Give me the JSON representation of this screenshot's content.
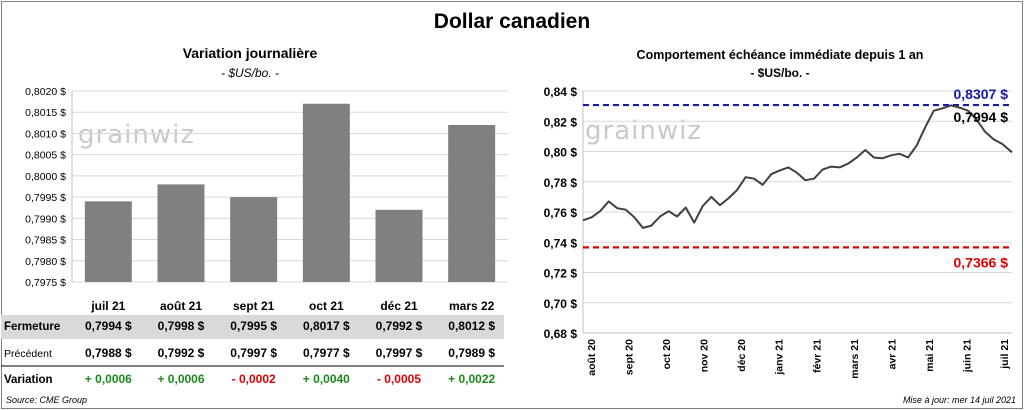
{
  "page": {
    "title": "Dollar canadien",
    "source": "Source: CME Group",
    "updated": "Mise à jour: mer 14 juil 2021",
    "watermark": "grainwiz"
  },
  "colors": {
    "bar": "#808080",
    "line": "#404040",
    "max_line": "#1a1aa6",
    "min_line": "#e00000",
    "positive": "#1a8a1a",
    "negative": "#e00000",
    "row_shade": "#d9d9d9"
  },
  "left_chart": {
    "title": "Variation  journalière",
    "unit": "- $US/bo. -"
  },
  "right_chart": {
    "title": "Comportement échéance immédiate depuis 1 an",
    "unit": "- $US/bo. -",
    "max_label": "0,8307 $",
    "last_label": "0,7994 $",
    "min_label": "0,7366 $"
  },
  "table": {
    "rows": [
      {
        "label": "Fermeture",
        "cells": [
          "0,7994  $",
          "0,7998  $",
          "0,7995  $",
          "0,8017  $",
          "0,7992  $",
          "0,8012  $"
        ]
      },
      {
        "label": "Précédent",
        "cells": [
          "0,7988  $",
          "0,7992  $",
          "0,7997  $",
          "0,7977  $",
          "0,7997  $",
          "0,7989  $"
        ]
      },
      {
        "label": "Variation",
        "cells": [
          "+ 0,0006",
          "+ 0,0006",
          "- 0,0002",
          "+ 0,0040",
          "- 0,0005",
          "+ 0,0022"
        ]
      }
    ]
  },
  "chart_data": [
    {
      "type": "bar",
      "categories": [
        "juil 21",
        "août 21",
        "sept 21",
        "oct 21",
        "déc 21",
        "mars 22"
      ],
      "values": [
        0.7994,
        0.7998,
        0.7995,
        0.8017,
        0.7992,
        0.8012
      ],
      "title": "Variation  journalière",
      "ylabel": "- $US/bo. -",
      "ylim": [
        0.7975,
        0.802
      ],
      "yticks": [
        0.7975,
        0.798,
        0.7985,
        0.799,
        0.7995,
        0.8,
        0.8005,
        0.801,
        0.8015,
        0.802
      ],
      "ytick_labels": [
        "0,7975 $",
        "0,7980 $",
        "0,7985 $",
        "0,7990 $",
        "0,7995 $",
        "0,8000 $",
        "0,8005 $",
        "0,8010 $",
        "0,8015 $",
        "0,8020 $"
      ],
      "grid": true
    },
    {
      "type": "line",
      "title": "Comportement échéance immédiate depuis 1 an",
      "ylabel": "- $US/bo. -",
      "ylim": [
        0.68,
        0.84
      ],
      "yticks": [
        0.68,
        0.7,
        0.72,
        0.74,
        0.76,
        0.78,
        0.8,
        0.82,
        0.84
      ],
      "ytick_labels": [
        "0,68 $",
        "0,70 $",
        "0,72 $",
        "0,74 $",
        "0,76 $",
        "0,78 $",
        "0,80 $",
        "0,82 $",
        "0,84 $"
      ],
      "xtick_labels": [
        "août 20",
        "sept 20",
        "oct 20",
        "nov 20",
        "déc 20",
        "janv 21",
        "févr 21",
        "mars 21",
        "avr 21",
        "mai 21",
        "juin 21",
        "juil 21"
      ],
      "x_start": "2020-07-28",
      "x_end": "2021-07-14",
      "hlines": [
        {
          "name": "max",
          "value": 0.8307
        },
        {
          "name": "min",
          "value": 0.7366
        }
      ],
      "series": [
        {
          "x": [
            "2020-07-28",
            "2020-08-04",
            "2020-08-11",
            "2020-08-18",
            "2020-08-25",
            "2020-09-01",
            "2020-09-08",
            "2020-09-15",
            "2020-09-22",
            "2020-09-29",
            "2020-10-06",
            "2020-10-13",
            "2020-10-20",
            "2020-10-27",
            "2020-11-03",
            "2020-11-10",
            "2020-11-17",
            "2020-11-24",
            "2020-12-01",
            "2020-12-08",
            "2020-12-15",
            "2020-12-22",
            "2020-12-29",
            "2021-01-05",
            "2021-01-12",
            "2021-01-19",
            "2021-01-26",
            "2021-02-02",
            "2021-02-09",
            "2021-02-16",
            "2021-02-23",
            "2021-03-02",
            "2021-03-09",
            "2021-03-16",
            "2021-03-23",
            "2021-03-30",
            "2021-04-06",
            "2021-04-13",
            "2021-04-20",
            "2021-04-27",
            "2021-05-04",
            "2021-05-11",
            "2021-05-18",
            "2021-05-25",
            "2021-06-01",
            "2021-06-08",
            "2021-06-15",
            "2021-06-22",
            "2021-06-29",
            "2021-07-06",
            "2021-07-14"
          ],
          "values": [
            0.7545,
            0.7565,
            0.7605,
            0.767,
            0.7625,
            0.7615,
            0.7565,
            0.7495,
            0.751,
            0.757,
            0.7605,
            0.757,
            0.763,
            0.753,
            0.764,
            0.77,
            0.7645,
            0.769,
            0.7745,
            0.783,
            0.782,
            0.778,
            0.785,
            0.7875,
            0.7895,
            0.786,
            0.781,
            0.782,
            0.788,
            0.79,
            0.7895,
            0.792,
            0.796,
            0.801,
            0.796,
            0.7955,
            0.7975,
            0.7985,
            0.796,
            0.804,
            0.816,
            0.827,
            0.8285,
            0.8305,
            0.829,
            0.827,
            0.821,
            0.813,
            0.808,
            0.805,
            0.7994
          ]
        }
      ]
    }
  ]
}
